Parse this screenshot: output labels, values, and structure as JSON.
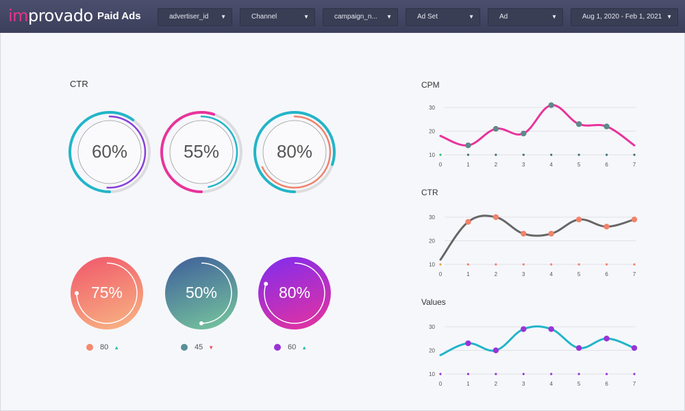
{
  "header": {
    "logo_prefix": "im",
    "logo_rest": "provado",
    "title": "Paid Ads",
    "filters": [
      {
        "label": "advertiser_id"
      },
      {
        "label": "Channel"
      },
      {
        "label": "campaign_n..."
      },
      {
        "label": "Ad Set"
      },
      {
        "label": "Ad"
      },
      {
        "label": "Aug 1, 2020 - Feb 1, 2021"
      }
    ]
  },
  "ctr_section": {
    "title": "CTR",
    "rings": [
      {
        "value_text": "60%",
        "value": 0.6,
        "outer_color": "#22b5c8",
        "inner_color": "#8a3fd8"
      },
      {
        "value_text": "55%",
        "value": 0.55,
        "outer_color": "#e8339b",
        "inner_color": "#22b5c8"
      },
      {
        "value_text": "80%",
        "value": 0.8,
        "outer_color": "#22b5c8",
        "inner_color": "#f0836b"
      }
    ],
    "discs": [
      {
        "value_text": "75%",
        "value": 0.75,
        "from": "#f0566a",
        "to": "#f8b884",
        "legend_value": "80",
        "legend_color": "#f58a6e",
        "trend": "up",
        "trend_color": "#2bbfa6"
      },
      {
        "value_text": "50%",
        "value": 0.5,
        "from": "#3e5d9b",
        "to": "#78c99c",
        "legend_value": "45",
        "legend_color": "#5a8f97",
        "trend": "down",
        "trend_color": "#f04a5a"
      },
      {
        "value_text": "80%",
        "value": 0.8,
        "from": "#7f2cf0",
        "to": "#e8339b",
        "legend_value": "60",
        "legend_color": "#9a33d6",
        "trend": "up",
        "trend_color": "#2bbfa6"
      }
    ]
  },
  "chart_data": [
    {
      "type": "line",
      "title": "CPM",
      "x": [
        0,
        1,
        2,
        3,
        4,
        5,
        6,
        7
      ],
      "yticks": [
        10,
        20,
        30
      ],
      "ylim": [
        10,
        30
      ],
      "series": [
        {
          "values": [
            18,
            14,
            21,
            19,
            31,
            23,
            22,
            14
          ],
          "color": "#e8339b",
          "marker_color": "#5d8a8a",
          "markers": [
            1,
            2,
            3,
            4,
            5,
            6
          ]
        }
      ],
      "base_dot_color": "#3e6f7a",
      "baseline_dot_color_first": "#2bbf6a"
    },
    {
      "type": "line",
      "title": "CTR",
      "x": [
        0,
        1,
        2,
        3,
        4,
        5,
        6,
        7
      ],
      "yticks": [
        10,
        20,
        30
      ],
      "ylim": [
        10,
        30
      ],
      "series": [
        {
          "values": [
            12,
            28,
            30,
            23,
            23,
            29,
            26,
            29
          ],
          "color": "#666666",
          "marker_color": "#f0836b",
          "markers": [
            1,
            2,
            3,
            4,
            5,
            6,
            7
          ]
        }
      ],
      "base_dot_color": "#f0836b",
      "baseline_dot_color_first": "#f0a040"
    },
    {
      "type": "line",
      "title": "Values",
      "x": [
        0,
        1,
        2,
        3,
        4,
        5,
        6,
        7
      ],
      "yticks": [
        10,
        20,
        30
      ],
      "ylim": [
        10,
        30
      ],
      "series": [
        {
          "values": [
            18,
            23,
            20,
            29,
            29,
            21,
            25,
            21
          ],
          "color": "#22b5c8",
          "marker_color": "#9a33d6",
          "markers": [
            1,
            2,
            3,
            4,
            5,
            6,
            7
          ]
        }
      ],
      "base_dot_color": "#9a33d6",
      "baseline_dot_color_first": "#9a33d6"
    }
  ]
}
